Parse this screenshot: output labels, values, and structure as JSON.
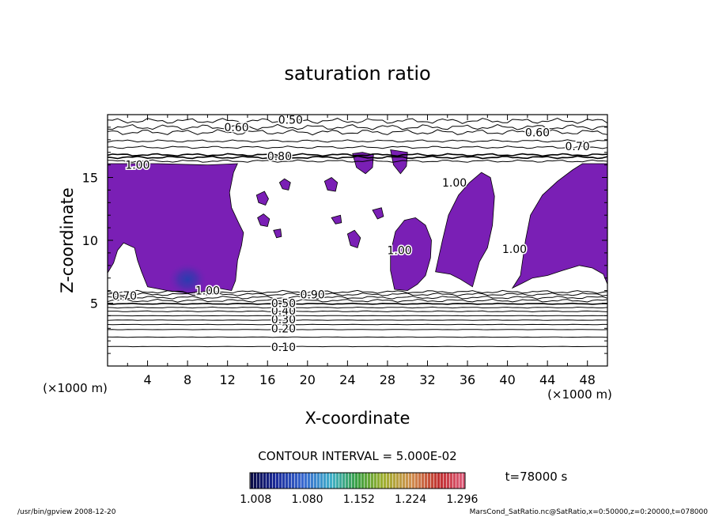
{
  "chart_data": {
    "type": "heatmap",
    "title": "saturation ratio",
    "xlabel": "X-coordinate",
    "ylabel": "Z-coordinate",
    "x_unit_label": "(×1000 m)",
    "y_unit_label": "(×1000 m)",
    "xlim": [
      0,
      50
    ],
    "ylim": [
      0,
      20
    ],
    "x_ticks": [
      4,
      8,
      12,
      16,
      20,
      24,
      28,
      32,
      36,
      40,
      44,
      48
    ],
    "y_ticks": [
      5,
      10,
      15
    ],
    "contour_interval_text": "CONTOUR INTERVAL = 5.000E-02",
    "time_text": "t=78000 s",
    "colorbar": {
      "labels": [
        "1.008",
        "1.080",
        "1.152",
        "1.224",
        "1.296"
      ],
      "range": [
        1.0,
        1.3
      ]
    },
    "contour_labels": [
      {
        "text": "0.10",
        "x": 17.6,
        "z": 1.5
      },
      {
        "text": "0.20",
        "x": 17.6,
        "z": 3.0
      },
      {
        "text": "0.30",
        "x": 17.6,
        "z": 3.7
      },
      {
        "text": "0.40",
        "x": 17.6,
        "z": 4.4
      },
      {
        "text": "0.50",
        "x": 17.6,
        "z": 5.0
      },
      {
        "text": "0.70",
        "x": 1.7,
        "z": 5.6
      },
      {
        "text": "1.00",
        "x": 10.0,
        "z": 6.0
      },
      {
        "text": "0.90",
        "x": 20.5,
        "z": 5.7
      },
      {
        "text": "0.50",
        "x": 18.3,
        "z": 19.6
      },
      {
        "text": "0.60",
        "x": 12.9,
        "z": 19.0
      },
      {
        "text": "0.80",
        "x": 17.2,
        "z": 16.7
      },
      {
        "text": "1.00",
        "x": 3.0,
        "z": 16.0
      },
      {
        "text": "0.60",
        "x": 43.0,
        "z": 18.6
      },
      {
        "text": "0.70",
        "x": 47.0,
        "z": 17.5
      },
      {
        "text": "1.00",
        "x": 34.7,
        "z": 14.6
      },
      {
        "text": "1.00",
        "x": 29.2,
        "z": 9.2
      },
      {
        "text": "1.00",
        "x": 40.7,
        "z": 9.3
      }
    ],
    "regions_above_1": [
      {
        "name": "left-plume",
        "points": [
          [
            0,
            16.1
          ],
          [
            5,
            16.1
          ],
          [
            10,
            16.0
          ],
          [
            13,
            16.1
          ],
          [
            12.6,
            15.4
          ],
          [
            12.2,
            13.8
          ],
          [
            12.4,
            12.6
          ],
          [
            13.1,
            11.4
          ],
          [
            13.6,
            10.6
          ],
          [
            13.4,
            9.6
          ],
          [
            13.0,
            8.4
          ],
          [
            12.8,
            6.8
          ],
          [
            12.4,
            6.0
          ],
          [
            11,
            6.2
          ],
          [
            9.5,
            5.9
          ],
          [
            8,
            5.8
          ],
          [
            6,
            6.0
          ],
          [
            4,
            6.3
          ],
          [
            3.4,
            7.5
          ],
          [
            3.0,
            8.4
          ],
          [
            2.7,
            9.4
          ],
          [
            1.6,
            9.8
          ],
          [
            1.0,
            9.2
          ],
          [
            0.6,
            8.2
          ],
          [
            0,
            7.4
          ]
        ]
      },
      {
        "name": "right-plume",
        "points": [
          [
            40.5,
            6.2
          ],
          [
            41.3,
            7.2
          ],
          [
            41.8,
            10.0
          ],
          [
            42.3,
            12.0
          ],
          [
            43.5,
            13.6
          ],
          [
            45.0,
            14.7
          ],
          [
            46.5,
            15.6
          ],
          [
            47.5,
            16.1
          ],
          [
            50,
            16.1
          ],
          [
            50,
            6.5
          ],
          [
            49.6,
            7.3
          ],
          [
            48.5,
            7.8
          ],
          [
            47.2,
            8.0
          ],
          [
            45.5,
            7.6
          ],
          [
            44,
            7.2
          ],
          [
            42.5,
            7.0
          ],
          [
            41.5,
            6.6
          ]
        ]
      },
      {
        "name": "mid-right-plume",
        "points": [
          [
            32.8,
            7.5
          ],
          [
            33.5,
            10.0
          ],
          [
            34.1,
            12.0
          ],
          [
            35.1,
            13.6
          ],
          [
            36.2,
            14.6
          ],
          [
            37.4,
            15.4
          ],
          [
            38.3,
            15.0
          ],
          [
            38.7,
            13.5
          ],
          [
            38.5,
            11.2
          ],
          [
            38.0,
            9.4
          ],
          [
            37.2,
            8.3
          ],
          [
            36.5,
            6.3
          ],
          [
            35.3,
            6.9
          ],
          [
            34.3,
            7.3
          ]
        ]
      },
      {
        "name": "mid-plume",
        "points": [
          [
            28.7,
            6.1
          ],
          [
            28.3,
            7.6
          ],
          [
            28.3,
            9.0
          ],
          [
            28.8,
            10.7
          ],
          [
            29.7,
            11.6
          ],
          [
            30.8,
            11.8
          ],
          [
            31.8,
            11.2
          ],
          [
            32.4,
            10.0
          ],
          [
            32.3,
            8.6
          ],
          [
            31.8,
            7.2
          ],
          [
            31.0,
            6.5
          ],
          [
            30.0,
            6.0
          ]
        ]
      },
      {
        "name": "upper-blob-1",
        "points": [
          [
            24.5,
            16.9
          ],
          [
            24.9,
            15.8
          ],
          [
            25.8,
            15.3
          ],
          [
            26.5,
            15.8
          ],
          [
            26.6,
            16.8
          ],
          [
            25.5,
            17.0
          ]
        ]
      },
      {
        "name": "upper-blob-2",
        "points": [
          [
            28.3,
            17.2
          ],
          [
            28.6,
            16.0
          ],
          [
            29.3,
            15.3
          ],
          [
            29.9,
            15.9
          ],
          [
            30.0,
            17.0
          ]
        ]
      },
      {
        "name": "upper-blob-3",
        "points": [
          [
            14.9,
            13.6
          ],
          [
            15.1,
            13.0
          ],
          [
            15.8,
            12.8
          ],
          [
            16.1,
            13.3
          ],
          [
            15.7,
            13.9
          ]
        ]
      },
      {
        "name": "upper-blob-4",
        "points": [
          [
            17.2,
            14.6
          ],
          [
            17.5,
            14.1
          ],
          [
            18.1,
            14.0
          ],
          [
            18.3,
            14.6
          ],
          [
            17.7,
            14.9
          ]
        ]
      },
      {
        "name": "upper-blob-5",
        "points": [
          [
            21.7,
            14.7
          ],
          [
            22.0,
            14.0
          ],
          [
            22.8,
            13.9
          ],
          [
            23.0,
            14.6
          ],
          [
            22.4,
            15.0
          ]
        ]
      },
      {
        "name": "low-blob-1",
        "points": [
          [
            24.0,
            10.5
          ],
          [
            24.3,
            9.6
          ],
          [
            25.0,
            9.4
          ],
          [
            25.3,
            10.2
          ],
          [
            24.7,
            10.8
          ]
        ]
      },
      {
        "name": "low-blob-2",
        "points": [
          [
            22.4,
            11.8
          ],
          [
            22.8,
            11.3
          ],
          [
            23.4,
            11.4
          ],
          [
            23.3,
            12.0
          ]
        ]
      },
      {
        "name": "low-blob-3",
        "points": [
          [
            26.5,
            12.4
          ],
          [
            27.0,
            11.7
          ],
          [
            27.6,
            11.9
          ],
          [
            27.4,
            12.6
          ]
        ]
      },
      {
        "name": "low-blob-4",
        "points": [
          [
            15.0,
            11.8
          ],
          [
            15.3,
            11.2
          ],
          [
            16.0,
            11.1
          ],
          [
            16.2,
            11.7
          ],
          [
            15.6,
            12.1
          ]
        ]
      },
      {
        "name": "low-blob-5",
        "points": [
          [
            16.6,
            10.8
          ],
          [
            16.9,
            10.2
          ],
          [
            17.4,
            10.3
          ],
          [
            17.3,
            10.9
          ]
        ]
      }
    ],
    "contours_lower": [
      {
        "level": 0.1,
        "z": 1.55
      },
      {
        "level": 0.15,
        "z": 2.3
      },
      {
        "level": 0.2,
        "z": 2.9
      },
      {
        "level": 0.25,
        "z": 3.3
      },
      {
        "level": 0.3,
        "z": 3.65
      },
      {
        "level": 0.35,
        "z": 4.0
      },
      {
        "level": 0.4,
        "z": 4.35
      },
      {
        "level": 0.45,
        "z": 4.65
      },
      {
        "level": 0.5,
        "z": 4.95
      },
      {
        "level": 0.6,
        "z": 5.2
      },
      {
        "level": 0.7,
        "z": 5.45
      },
      {
        "level": 0.8,
        "z": 5.7
      },
      {
        "level": 0.9,
        "z": 5.9
      }
    ],
    "contours_upper": [
      {
        "level": 0.9,
        "z": 16.3
      },
      {
        "level": 0.8,
        "z": 16.6
      },
      {
        "level": 0.8,
        "z": 16.8
      },
      {
        "level": 0.7,
        "z": 17.4
      },
      {
        "level": 0.7,
        "z": 17.9
      },
      {
        "level": 0.6,
        "z": 18.6
      },
      {
        "level": 0.6,
        "z": 19.0
      },
      {
        "level": 0.5,
        "z": 19.5
      }
    ]
  },
  "footer": {
    "left": "/usr/bin/gpview  2008-12-20",
    "right": "MarsCond_SatRatio.nc@SatRatio,x=0:50000,z=0:20000,t=078000"
  },
  "colors": {
    "fill": "#7a1fb5",
    "fill_dark": "#3a2aa8",
    "contour": "#000000"
  }
}
